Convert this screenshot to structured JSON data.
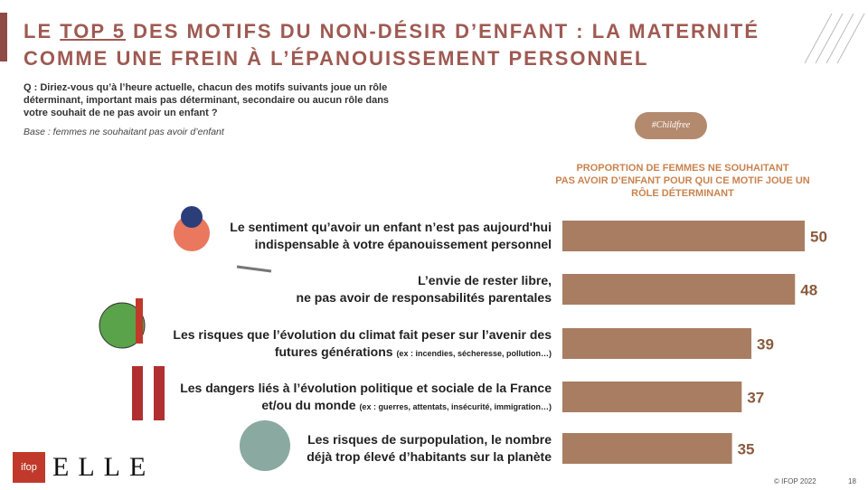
{
  "chart_data": {
    "type": "hbar",
    "title": {
      "lead": "LE ",
      "highlight": "TOP 5",
      "rest": " DES MOTIFS DU NON-DÉSIR D’ENFANT : LA MATERNITÉ",
      "line2": "COMME UNE FREIN À L’ÉPANOUISSEMENT PERSONNEL"
    },
    "question": "Q : Diriez-vous qu’à l’heure actuelle, chacun des motifs suivants joue un rôle déterminant, important mais pas déterminant, secondaire ou aucun rôle dans votre souhait de ne pas avoir un enfant ?",
    "base": "Base : femmes ne souhaitant pas avoir d’enfant",
    "badge": "#Childfree",
    "value_axis_title": "PROPORTION DE FEMMES NE SOUHAITANT\nPAS AVOIR D’ENFANT POUR QUI CE MOTIF JOUE UN\nRÔLE DÉTERMINANT",
    "categories": [
      "Le sentiment qu’avoir un enfant n’est pas aujourd'hui\nindispensable à votre épanouissement personnel",
      "L’envie de rester libre,\nne pas avoir de responsabilités parentales",
      "Les risques que l’évolution du climat fait peser sur l’avenir des\nfutures générations",
      "Les dangers liés à l’évolution politique et sociale de la France\net/ou du monde",
      "Les risques de surpopulation, le nombre\ndéjà trop élevé d’habitants sur la planète"
    ],
    "category_notes": [
      null,
      null,
      "(ex : incendies, sécheresse, pollution…)",
      "(ex : guerres, attentats, insécurité, immigration…)",
      null
    ],
    "values": [
      50,
      48,
      39,
      37,
      35
    ],
    "xlim": [
      0,
      50
    ],
    "color": "#a87d62",
    "footer": "© IFOP 2022",
    "page_number": "18",
    "logos": {
      "ifop": "ifop",
      "elle": "ELLE"
    }
  }
}
